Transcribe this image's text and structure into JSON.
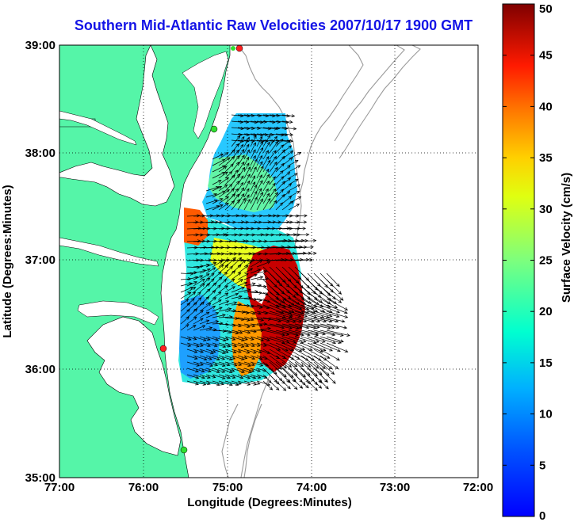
{
  "title": "Southern Mid-Atlantic Raw Velocities 2007/10/17 1900 GMT",
  "map": {
    "xlabel": "Longitude (Degrees:Minutes)",
    "ylabel": "Latitude (Degrees:Minutes)",
    "x_ticks": [
      "77:00",
      "76:00",
      "75:00",
      "74:00",
      "73:00",
      "72:00"
    ],
    "y_ticks": [
      "39:00",
      "38:00",
      "37:00",
      "36:00",
      "35:00"
    ],
    "x_range_deg": [
      -77,
      -72
    ],
    "y_range_deg": [
      35,
      39
    ],
    "grid": "dotted"
  },
  "colorbar": {
    "label": "Surface Velocity (cm/s)",
    "ticks": [
      "0",
      "5",
      "10",
      "15",
      "20",
      "25",
      "30",
      "35",
      "40",
      "45",
      "50"
    ],
    "range": [
      0,
      50
    ]
  },
  "colors": {
    "land": "#55f5a8",
    "water": "#ffffff",
    "bathymetry": "#9a9a9a",
    "vector": "#000000",
    "station_red": "#ff2020",
    "station_green": "#30e030",
    "title_color": "#1414e6"
  }
}
